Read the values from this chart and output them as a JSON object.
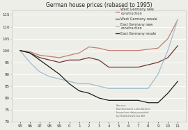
{
  "title": "German house prices (rebased to 1995)",
  "x_labels": [
    "95",
    "96",
    "97",
    "98",
    "99",
    "0",
    "1",
    "2",
    "3",
    "4",
    "5",
    "6",
    "7",
    "8",
    "9",
    "10",
    "11"
  ],
  "west_new": [
    100,
    99.5,
    98,
    97.5,
    97,
    98,
    99,
    101.5,
    101,
    100,
    100,
    100,
    100,
    100.5,
    101,
    105,
    113
  ],
  "west_resale": [
    100,
    99,
    97,
    96,
    95,
    96,
    96,
    97,
    96,
    93,
    93,
    93,
    93,
    94,
    95,
    97,
    102
  ],
  "east_new": [
    100,
    95,
    91,
    89,
    88,
    87,
    86,
    86,
    85,
    84,
    84,
    84,
    84,
    84,
    90,
    100,
    113
  ],
  "east_resale": [
    100,
    99,
    96,
    93,
    90,
    86,
    83,
    82,
    80,
    79,
    79,
    79,
    79,
    78,
    78,
    82,
    87
  ],
  "ylim": [
    70,
    117
  ],
  "yticks": [
    70,
    75,
    80,
    85,
    90,
    95,
    100,
    105,
    110,
    115
  ],
  "color_west_new": "#c47c75",
  "color_west_resale": "#6b3530",
  "color_east_new": "#a0bcd0",
  "color_east_resale": "#1a1a1a",
  "legend_labels": [
    "West Germany new\nconstruction",
    "West Germany resale",
    "East Germany new\nconstruction",
    "East Germany resale"
  ],
  "source_text": "Source:\nBundesbank calculations\nbased on data provided\nby Bulwien&Gesa AG",
  "bg_color": "#eeeee8",
  "grid_color": "#ffffff"
}
